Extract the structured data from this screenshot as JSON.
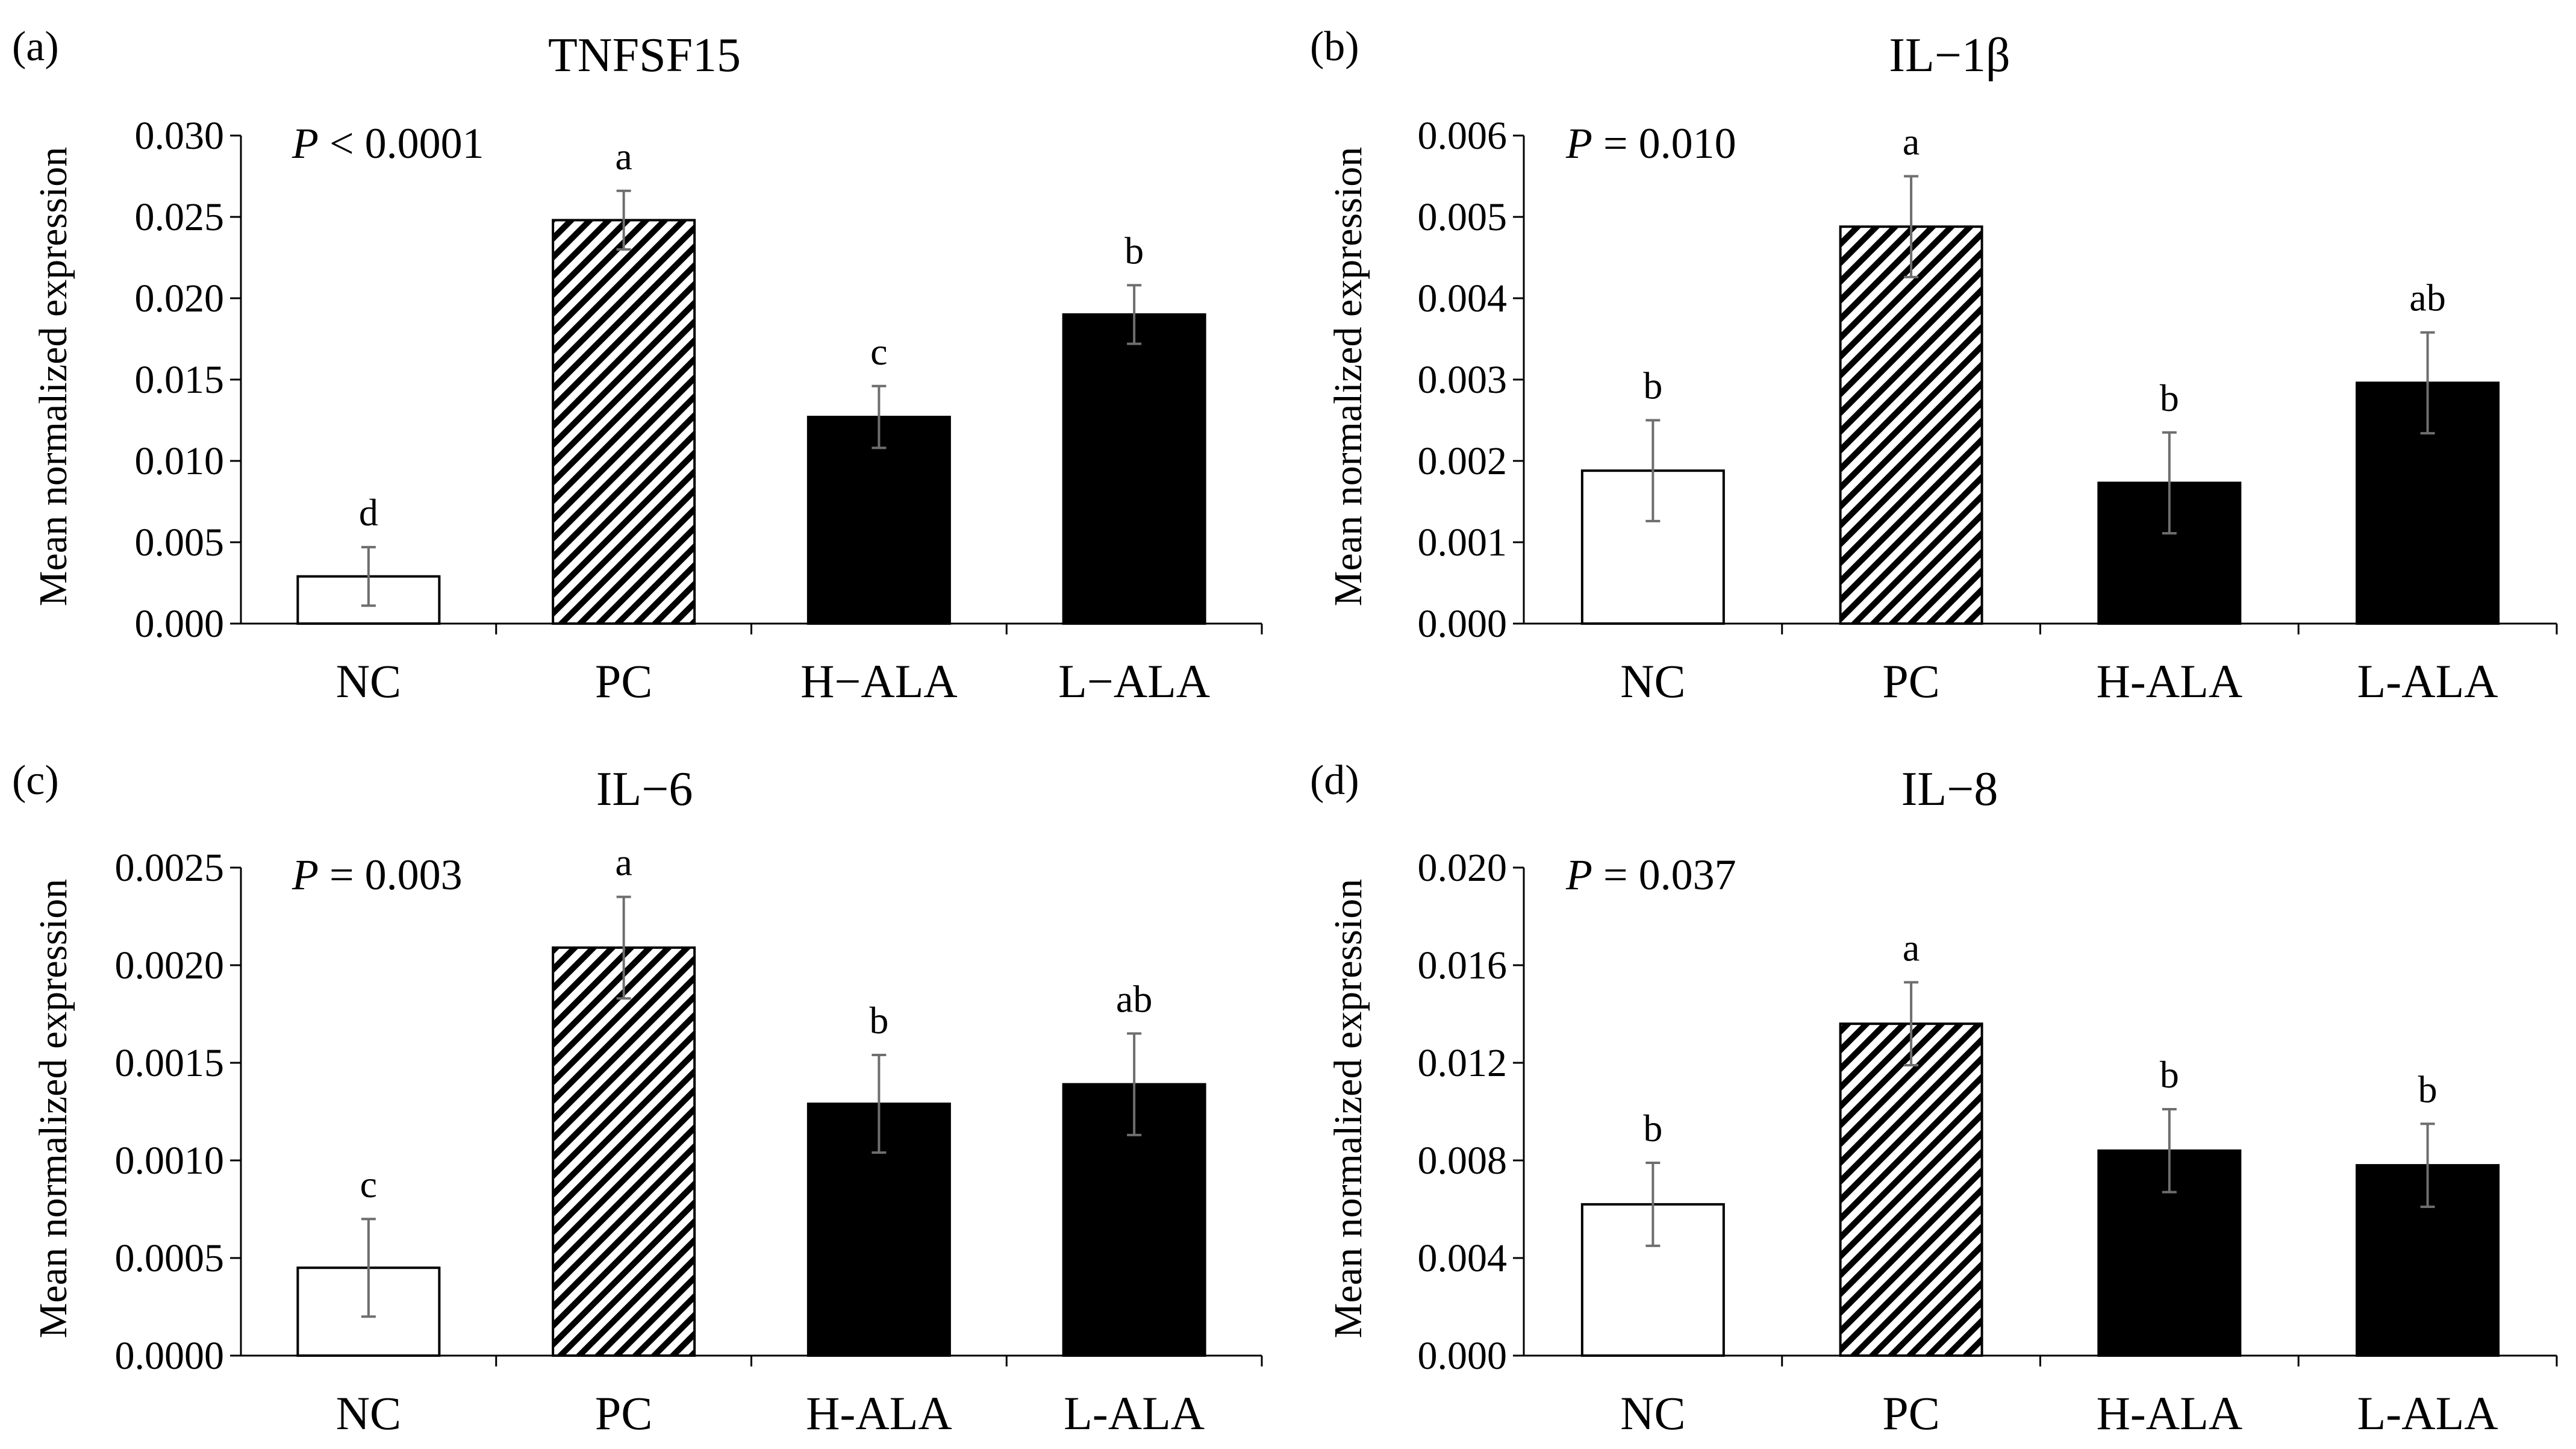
{
  "colors": {
    "nc": "#ffffff",
    "pc_stripe": "#000000",
    "ala": "#000000",
    "axis": "#000000",
    "error_bar": "#6e6e6e"
  },
  "chart_data": [
    {
      "type": "bar",
      "panel_label": "(a)",
      "title": "TNFSF15",
      "ylabel": "Mean normalized expression",
      "xlabel": "",
      "pvalue": {
        "symbol": "P",
        "rest": " < 0.0001"
      },
      "categories": [
        "NC",
        "PC",
        "H−ALA",
        "L−ALA"
      ],
      "fills": [
        "white",
        "hatch",
        "black",
        "black"
      ],
      "values": [
        0.0029,
        0.0248,
        0.0127,
        0.019
      ],
      "errors": [
        0.0018,
        0.0018,
        0.0019,
        0.0018
      ],
      "letters": [
        "d",
        "a",
        "c",
        "b"
      ],
      "ylim": [
        0,
        0.03
      ],
      "yticks": [
        "0.000",
        "0.005",
        "0.010",
        "0.015",
        "0.020",
        "0.025",
        "0.030"
      ]
    },
    {
      "type": "bar",
      "panel_label": "(b)",
      "title": "IL−1β",
      "ylabel": "Mean normalized expression",
      "xlabel": "",
      "pvalue": {
        "symbol": "P",
        "rest": " = 0.010"
      },
      "categories": [
        "NC",
        "PC",
        "H-ALA",
        "L-ALA"
      ],
      "fills": [
        "white",
        "hatch",
        "black",
        "black"
      ],
      "values": [
        0.00188,
        0.00488,
        0.00173,
        0.00296
      ],
      "errors": [
        0.00062,
        0.00062,
        0.00062,
        0.00062
      ],
      "letters": [
        "b",
        "a",
        "b",
        "ab"
      ],
      "ylim": [
        0,
        0.006
      ],
      "yticks": [
        "0.000",
        "0.001",
        "0.002",
        "0.003",
        "0.004",
        "0.005",
        "0.006"
      ]
    },
    {
      "type": "bar",
      "panel_label": "(c)",
      "title": "IL−6",
      "ylabel": "Mean normalized expression",
      "xlabel": "",
      "pvalue": {
        "symbol": "P",
        "rest": " = 0.003"
      },
      "categories": [
        "NC",
        "PC",
        "H-ALA",
        "L-ALA"
      ],
      "fills": [
        "white",
        "hatch",
        "black",
        "black"
      ],
      "values": [
        0.00045,
        0.00209,
        0.00129,
        0.00139
      ],
      "errors": [
        0.00025,
        0.00026,
        0.00025,
        0.00026
      ],
      "letters": [
        "c",
        "a",
        "b",
        "ab"
      ],
      "ylim": [
        0,
        0.0025
      ],
      "yticks": [
        "0.0000",
        "0.0005",
        "0.0010",
        "0.0015",
        "0.0020",
        "0.0025"
      ]
    },
    {
      "type": "bar",
      "panel_label": "(d)",
      "title": "IL−8",
      "ylabel": "Mean normalized expression",
      "xlabel": "",
      "pvalue": {
        "symbol": "P",
        "rest": " = 0.037"
      },
      "categories": [
        "NC",
        "PC",
        "H-ALA",
        "L-ALA"
      ],
      "fills": [
        "white",
        "hatch",
        "black",
        "black"
      ],
      "values": [
        0.0062,
        0.0136,
        0.0084,
        0.0078
      ],
      "errors": [
        0.0017,
        0.0017,
        0.0017,
        0.0017
      ],
      "letters": [
        "b",
        "a",
        "b",
        "b"
      ],
      "ylim": [
        0,
        0.02
      ],
      "yticks": [
        "0.000",
        "0.004",
        "0.008",
        "0.012",
        "0.016",
        "0.020"
      ]
    }
  ]
}
